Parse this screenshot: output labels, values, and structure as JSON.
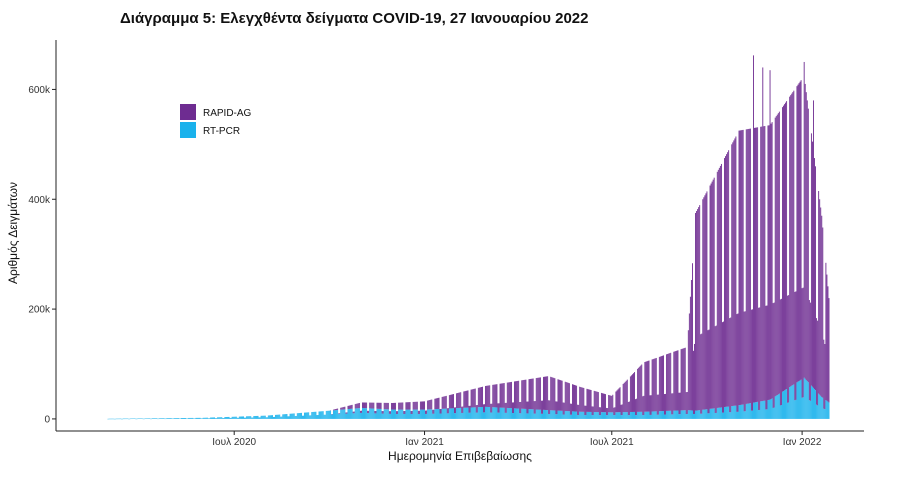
{
  "chart_data": {
    "type": "bar",
    "stacked": true,
    "title": "Διάγραμμα 5: Ελεγχθέντα δείγματα COVID-19, 27 Ιανουαρίου 2022",
    "xlabel": "Ημερομηνία Επιβεβαίωσης",
    "ylabel": "Αριθμός Δειγμάτων",
    "x_range": [
      "2020-03-01",
      "2022-01-27"
    ],
    "ylim": [
      -22000,
      690000
    ],
    "x_ticks": [
      {
        "date": "2020-07-01",
        "label": "Ιουλ 2020"
      },
      {
        "date": "2021-01-01",
        "label": "Ιαν 2021"
      },
      {
        "date": "2021-07-01",
        "label": "Ιουλ 2021"
      },
      {
        "date": "2022-01-01",
        "label": "Ιαν 2022"
      }
    ],
    "y_ticks": [
      {
        "value": 0,
        "label": "0"
      },
      {
        "value": 200000,
        "label": "200k"
      },
      {
        "value": 400000,
        "label": "400k"
      },
      {
        "value": 600000,
        "label": "600k"
      }
    ],
    "grid": false,
    "legend_position": "top-left",
    "series": [
      {
        "name": "RAPID-AG",
        "color": "#6E2C91"
      },
      {
        "name": "RT-PCR",
        "color": "#1AB2EC"
      }
    ],
    "weekly_profile": [
      {
        "period": "2020-03",
        "RT-PCR": {
          "weekday": 300,
          "weekend": 150
        },
        "RAPID-AG": {
          "weekday": 0,
          "weekend": 0
        }
      },
      {
        "period": "2020-06",
        "RT-PCR": {
          "weekday": 2000,
          "weekend": 1000
        },
        "RAPID-AG": {
          "weekday": 0,
          "weekend": 0
        }
      },
      {
        "period": "2020-08",
        "RT-PCR": {
          "weekday": 6000,
          "weekend": 3000
        },
        "RAPID-AG": {
          "weekday": 0,
          "weekend": 0
        }
      },
      {
        "period": "2020-10",
        "RT-PCR": {
          "weekday": 15000,
          "weekend": 8000
        },
        "RAPID-AG": {
          "weekday": 0,
          "weekend": 0
        }
      },
      {
        "period": "2020-11",
        "RT-PCR": {
          "weekday": 20000,
          "weekend": 11000
        },
        "RAPID-AG": {
          "weekday": 10000,
          "weekend": 4000
        }
      },
      {
        "period": "2020-12",
        "RT-PCR": {
          "weekday": 17000,
          "weekend": 9000
        },
        "RAPID-AG": {
          "weekday": 12000,
          "weekend": 5000
        }
      },
      {
        "period": "2021-01",
        "RT-PCR": {
          "weekday": 17000,
          "weekend": 9000
        },
        "RAPID-AG": {
          "weekday": 15000,
          "weekend": 6000
        }
      },
      {
        "period": "2021-03",
        "RT-PCR": {
          "weekday": 22000,
          "weekend": 12000
        },
        "RAPID-AG": {
          "weekday": 38000,
          "weekend": 15000
        }
      },
      {
        "period": "2021-05",
        "RT-PCR": {
          "weekday": 16000,
          "weekend": 9000
        },
        "RAPID-AG": {
          "weekday": 62000,
          "weekend": 25000
        }
      },
      {
        "period": "2021-06",
        "RT-PCR": {
          "weekday": 13000,
          "weekend": 7000
        },
        "RAPID-AG": {
          "weekday": 45000,
          "weekend": 18000
        }
      },
      {
        "period": "2021-07",
        "RT-PCR": {
          "weekday": 12000,
          "weekend": 7000
        },
        "RAPID-AG": {
          "weekday": 30000,
          "weekend": 12000
        }
      },
      {
        "period": "2021-08",
        "RT-PCR": {
          "weekday": 13000,
          "weekend": 7000
        },
        "RAPID-AG": {
          "weekday": 90000,
          "weekend": 35000
        }
      },
      {
        "period": "2021-09-12",
        "RT-PCR": {
          "weekday": 16000,
          "weekend": 9000
        },
        "RAPID-AG": {
          "weekday": 115000,
          "weekend": 40000
        }
      },
      {
        "period": "2021-09-20",
        "RT-PCR": {
          "weekday": 15000,
          "weekend": 9000
        },
        "RAPID-AG": {
          "weekday": 360000,
          "weekend": 140000
        }
      },
      {
        "period": "2021-11",
        "RT-PCR": {
          "weekday": 25000,
          "weekend": 13000
        },
        "RAPID-AG": {
          "weekday": 500000,
          "weekend": 180000
        }
      },
      {
        "period": "2021-12",
        "RT-PCR": {
          "weekday": 35000,
          "weekend": 18000
        },
        "RAPID-AG": {
          "weekday": 500000,
          "weekend": 190000
        }
      },
      {
        "period": "2022-01-03",
        "RT-PCR": {
          "weekday": 75000,
          "weekend": 40000
        },
        "RAPID-AG": {
          "weekday": 550000,
          "weekend": 200000
        }
      },
      {
        "period": "2022-01-20",
        "RT-PCR": {
          "weekday": 40000,
          "weekend": 20000
        },
        "RAPID-AG": {
          "weekday": 330000,
          "weekend": 140000
        }
      },
      {
        "period": "2022-01-27",
        "RT-PCR": {
          "weekday": 30000,
          "weekend": 15000
        },
        "RAPID-AG": {
          "weekday": 190000,
          "weekend": 90000
        }
      }
    ],
    "peaks": [
      {
        "date": "2021-11-15",
        "total": 662000
      },
      {
        "date": "2021-11-24",
        "total": 640000
      },
      {
        "date": "2021-12-01",
        "total": 635000
      },
      {
        "date": "2022-01-03",
        "total": 650000
      },
      {
        "date": "2022-01-12",
        "total": 580000
      }
    ]
  }
}
